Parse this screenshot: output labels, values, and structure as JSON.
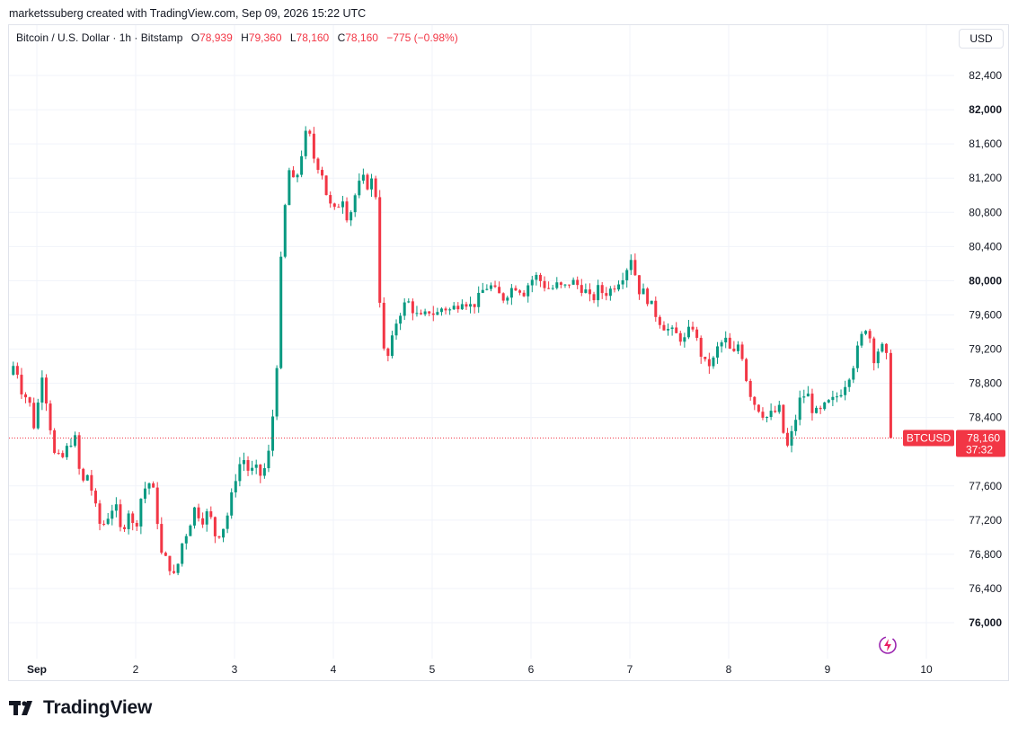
{
  "header": {
    "credit": "marketssuberg created with TradingView.com, Sep 09, 2026 15:22 UTC"
  },
  "legend": {
    "symbol": "Bitcoin / U.S. Dollar · 1h · Bitstamp",
    "o_label": "O",
    "o_value": "78,939",
    "h_label": "H",
    "h_value": "79,360",
    "l_label": "L",
    "l_value": "78,160",
    "c_label": "C",
    "c_value": "78,160",
    "change": "−775 (−0.98%)"
  },
  "currency_button": "USD",
  "price_tag": {
    "symbol": "BTCUSD",
    "price": "78,160",
    "countdown": "37:32"
  },
  "footer": {
    "brand": "TradingView"
  },
  "colors": {
    "up": "#089981",
    "down": "#f23645",
    "grid": "#f0f3fa",
    "text": "#131722"
  },
  "chart_data": {
    "type": "candlestick",
    "ylim": [
      75800,
      82650
    ],
    "xlim": [
      0.72,
      10.15
    ],
    "y_ticks": [
      {
        "value": 82400,
        "label": "82,400",
        "bold": false
      },
      {
        "value": 82000,
        "label": "82,000",
        "bold": true
      },
      {
        "value": 81600,
        "label": "81,600",
        "bold": false
      },
      {
        "value": 81200,
        "label": "81,200",
        "bold": false
      },
      {
        "value": 80800,
        "label": "80,800",
        "bold": false
      },
      {
        "value": 80400,
        "label": "80,400",
        "bold": false
      },
      {
        "value": 80000,
        "label": "80,000",
        "bold": true
      },
      {
        "value": 79600,
        "label": "79,600",
        "bold": false
      },
      {
        "value": 79200,
        "label": "79,200",
        "bold": false
      },
      {
        "value": 78800,
        "label": "78,800",
        "bold": false
      },
      {
        "value": 78400,
        "label": "78,400",
        "bold": false
      },
      {
        "value": 77600,
        "label": "77,600",
        "bold": false
      },
      {
        "value": 77200,
        "label": "77,200",
        "bold": false
      },
      {
        "value": 76800,
        "label": "76,800",
        "bold": false
      },
      {
        "value": 76400,
        "label": "76,400",
        "bold": false
      },
      {
        "value": 76000,
        "label": "76,000",
        "bold": true
      }
    ],
    "x_ticks": [
      {
        "value": 1,
        "label": "Sep",
        "bold": true
      },
      {
        "value": 2,
        "label": "2",
        "bold": false
      },
      {
        "value": 3,
        "label": "3",
        "bold": false
      },
      {
        "value": 4,
        "label": "4",
        "bold": false
      },
      {
        "value": 5,
        "label": "5",
        "bold": false
      },
      {
        "value": 6,
        "label": "6",
        "bold": false
      },
      {
        "value": 7,
        "label": "7",
        "bold": false
      },
      {
        "value": 8,
        "label": "8",
        "bold": false
      },
      {
        "value": 9,
        "label": "9",
        "bold": false
      },
      {
        "value": 10,
        "label": "10",
        "bold": false
      }
    ],
    "last_price": 78160,
    "closes": [
      [
        0.72,
        78900
      ],
      [
        0.78,
        79050
      ],
      [
        0.85,
        78700
      ],
      [
        0.92,
        78600
      ],
      [
        0.98,
        78250
      ],
      [
        1.05,
        78950
      ],
      [
        1.11,
        78500
      ],
      [
        1.18,
        77950
      ],
      [
        1.25,
        77900
      ],
      [
        1.31,
        78050
      ],
      [
        1.38,
        78200
      ],
      [
        1.45,
        77600
      ],
      [
        1.52,
        77750
      ],
      [
        1.58,
        77400
      ],
      [
        1.65,
        77100
      ],
      [
        1.72,
        77250
      ],
      [
        1.79,
        77400
      ],
      [
        1.86,
        77000
      ],
      [
        1.92,
        77350
      ],
      [
        1.99,
        77050
      ],
      [
        2.06,
        77500
      ],
      [
        2.13,
        77650
      ],
      [
        2.19,
        77500
      ],
      [
        2.26,
        76800
      ],
      [
        2.33,
        76700
      ],
      [
        2.4,
        76500
      ],
      [
        2.46,
        76900
      ],
      [
        2.53,
        77100
      ],
      [
        2.6,
        77350
      ],
      [
        2.67,
        77200
      ],
      [
        2.74,
        77300
      ],
      [
        2.81,
        77000
      ],
      [
        2.88,
        77100
      ],
      [
        2.94,
        77300
      ],
      [
        3.01,
        77700
      ],
      [
        3.08,
        77950
      ],
      [
        3.15,
        77750
      ],
      [
        3.21,
        77800
      ],
      [
        3.28,
        77700
      ],
      [
        3.35,
        78000
      ],
      [
        3.42,
        78800
      ],
      [
        3.48,
        80500
      ],
      [
        3.55,
        81300
      ],
      [
        3.61,
        81100
      ],
      [
        3.68,
        81500
      ],
      [
        3.74,
        81800
      ],
      [
        3.81,
        81400
      ],
      [
        3.88,
        81300
      ],
      [
        3.95,
        80900
      ],
      [
        4.02,
        80800
      ],
      [
        4.09,
        81000
      ],
      [
        4.15,
        80700
      ],
      [
        4.22,
        81000
      ],
      [
        4.29,
        81200
      ],
      [
        4.36,
        81100
      ],
      [
        4.42,
        81250
      ],
      [
        4.49,
        79200
      ],
      [
        4.56,
        79100
      ],
      [
        4.63,
        79500
      ],
      [
        4.7,
        79700
      ],
      [
        4.77,
        79750
      ],
      [
        4.83,
        79600
      ],
      [
        4.9,
        79550
      ],
      [
        4.97,
        79650
      ],
      [
        5.04,
        79600
      ],
      [
        5.11,
        79700
      ],
      [
        5.17,
        79650
      ],
      [
        5.24,
        79700
      ],
      [
        5.31,
        79800
      ],
      [
        5.38,
        79700
      ],
      [
        5.45,
        79750
      ],
      [
        5.52,
        79900
      ],
      [
        5.58,
        79950
      ],
      [
        5.65,
        79850
      ],
      [
        5.72,
        79800
      ],
      [
        5.79,
        79900
      ],
      [
        5.86,
        79950
      ],
      [
        5.92,
        79850
      ],
      [
        5.99,
        80000
      ],
      [
        6.06,
        80050
      ],
      [
        6.13,
        79950
      ],
      [
        6.2,
        79900
      ],
      [
        6.27,
        79950
      ],
      [
        6.33,
        79900
      ],
      [
        6.4,
        80000
      ],
      [
        6.47,
        79950
      ],
      [
        6.54,
        79900
      ],
      [
        6.61,
        79750
      ],
      [
        6.68,
        79900
      ],
      [
        6.74,
        79850
      ],
      [
        6.81,
        79900
      ],
      [
        6.88,
        80000
      ],
      [
        6.95,
        80100
      ],
      [
        7.02,
        80300
      ],
      [
        7.08,
        79900
      ],
      [
        7.15,
        79850
      ],
      [
        7.22,
        79700
      ],
      [
        7.29,
        79550
      ],
      [
        7.36,
        79450
      ],
      [
        7.42,
        79400
      ],
      [
        7.49,
        79350
      ],
      [
        7.56,
        79300
      ],
      [
        7.63,
        79500
      ],
      [
        7.7,
        79200
      ],
      [
        7.77,
        79000
      ],
      [
        7.84,
        79050
      ],
      [
        7.9,
        79250
      ],
      [
        7.97,
        79300
      ],
      [
        8.04,
        79100
      ],
      [
        8.11,
        79300
      ],
      [
        8.18,
        78850
      ],
      [
        8.24,
        78600
      ],
      [
        8.31,
        78500
      ],
      [
        8.38,
        78400
      ],
      [
        8.45,
        78450
      ],
      [
        8.52,
        78500
      ],
      [
        8.58,
        78000
      ],
      [
        8.65,
        78250
      ],
      [
        8.72,
        78600
      ],
      [
        8.79,
        78700
      ],
      [
        8.86,
        78450
      ],
      [
        8.92,
        78450
      ],
      [
        8.99,
        78550
      ],
      [
        9.06,
        78600
      ],
      [
        9.13,
        78700
      ],
      [
        9.2,
        78850
      ],
      [
        9.27,
        79050
      ],
      [
        9.33,
        79300
      ],
      [
        9.4,
        79500
      ],
      [
        9.47,
        79100
      ],
      [
        9.54,
        79250
      ],
      [
        9.61,
        79050
      ],
      [
        9.64,
        78160
      ]
    ]
  }
}
